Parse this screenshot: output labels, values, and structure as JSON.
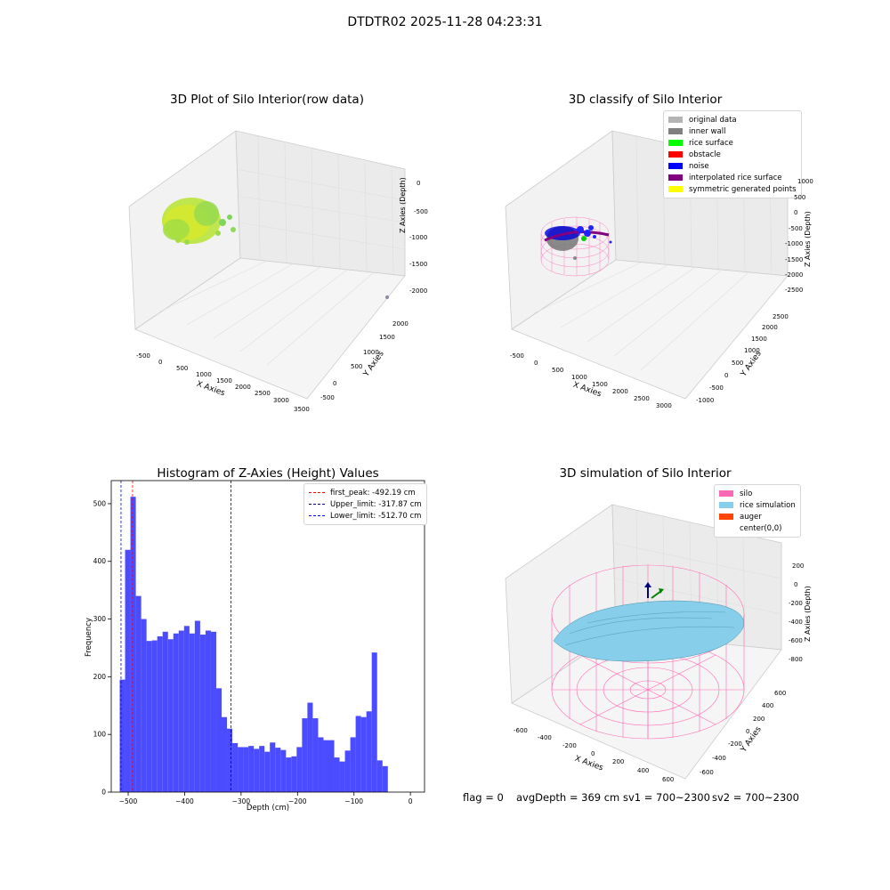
{
  "suptitle": "DTDTR02 2025-11-28 04:23:31",
  "panels": {
    "raw": {
      "title": "3D Plot of Silo Interior(row data)",
      "xlabel": "X Axies",
      "ylabel": "Y Axies",
      "zlabel": "Z Axies (Depth)",
      "xticks": [
        "-500",
        "0",
        "500",
        "1000",
        "1500",
        "2000",
        "2500",
        "3000",
        "3500"
      ],
      "yticks": [
        "-500",
        "0",
        "500",
        "1000",
        "1500",
        "2000"
      ],
      "zticks": [
        "0",
        "-500",
        "-1000",
        "-1500",
        "-2000"
      ]
    },
    "classify": {
      "title": "3D classify of Silo Interior",
      "xlabel": "X Axies",
      "ylabel": "Y Axies",
      "zlabel": "Z Axies (Depth)",
      "xticks": [
        "-500",
        "0",
        "500",
        "1000",
        "1500",
        "2000",
        "2500",
        "3000"
      ],
      "yticks": [
        "-1000",
        "-500",
        "0",
        "500",
        "1000",
        "1500",
        "2000",
        "2500"
      ],
      "zticks": [
        "1000",
        "500",
        "0",
        "-500",
        "-1000",
        "-1500",
        "-2000",
        "-2500"
      ],
      "legend": [
        {
          "label": "original data",
          "color": "#b4b4b4"
        },
        {
          "label": "inner wall",
          "color": "#808080"
        },
        {
          "label": "rice surface",
          "color": "#00ff00"
        },
        {
          "label": "obstacle",
          "color": "#ff0000"
        },
        {
          "label": "noise",
          "color": "#0000ff"
        },
        {
          "label": "interpolated rice surface",
          "color": "#800080"
        },
        {
          "label": "symmetric generated points",
          "color": "#ffff00"
        }
      ]
    },
    "simulation": {
      "title": "3D simulation of Silo Interior",
      "xlabel": "X Axies",
      "ylabel": "Y Axies",
      "zlabel": "Z Axies (Depth)",
      "xticks": [
        "-600",
        "-400",
        "-200",
        "0",
        "200",
        "400",
        "600"
      ],
      "yticks": [
        "-600",
        "-400",
        "-200",
        "0",
        "200",
        "400",
        "600"
      ],
      "zticks": [
        "200",
        "0",
        "-200",
        "-400",
        "-600",
        "-800"
      ],
      "legend": [
        {
          "label": "silo",
          "color": "#ff69b4"
        },
        {
          "label": "rice simulation",
          "color": "#87ceeb"
        },
        {
          "label": "auger",
          "color": "#ff4500"
        },
        {
          "label": "center(0,0)",
          "color": ""
        }
      ]
    }
  },
  "chart_data": {
    "type": "bar",
    "title": "Histogram of Z-Axies (Height) Values",
    "xlabel": "Depth (cm)",
    "ylabel": "Frequency",
    "xlim": [
      -530,
      25
    ],
    "ylim": [
      0,
      540
    ],
    "xticks": [
      -500,
      -400,
      -300,
      -200,
      -100,
      0
    ],
    "yticks": [
      0,
      100,
      200,
      300,
      400,
      500
    ],
    "bar_color": "#4b4bff",
    "bin_start": -515,
    "bin_width": 9.5,
    "values": [
      195,
      420,
      512,
      340,
      300,
      262,
      263,
      270,
      278,
      265,
      275,
      280,
      288,
      275,
      297,
      273,
      280,
      278,
      180,
      130,
      110,
      85,
      78,
      78,
      80,
      75,
      80,
      70,
      86,
      77,
      73,
      60,
      62,
      78,
      128,
      155,
      128,
      95,
      90,
      90,
      60,
      53,
      72,
      95,
      132,
      130,
      140,
      242,
      55,
      45
    ],
    "vlines": [
      {
        "x": -492.19,
        "label": "first_peak: -492.19 cm",
        "color": "#ff0000"
      },
      {
        "x": -317.87,
        "label": "Upper_limit: -317.87 cm",
        "color": "#00008b"
      },
      {
        "x": -512.7,
        "label": "Lower_limit: -512.70 cm",
        "color": "#0000ff"
      }
    ],
    "legend_position": "upper right"
  },
  "footer": {
    "flag": "flag = 0",
    "avg": "avgDepth = 369 cm",
    "sv1": "sv1 = 700~2300",
    "sv2": "sv2 = 700~2300"
  }
}
